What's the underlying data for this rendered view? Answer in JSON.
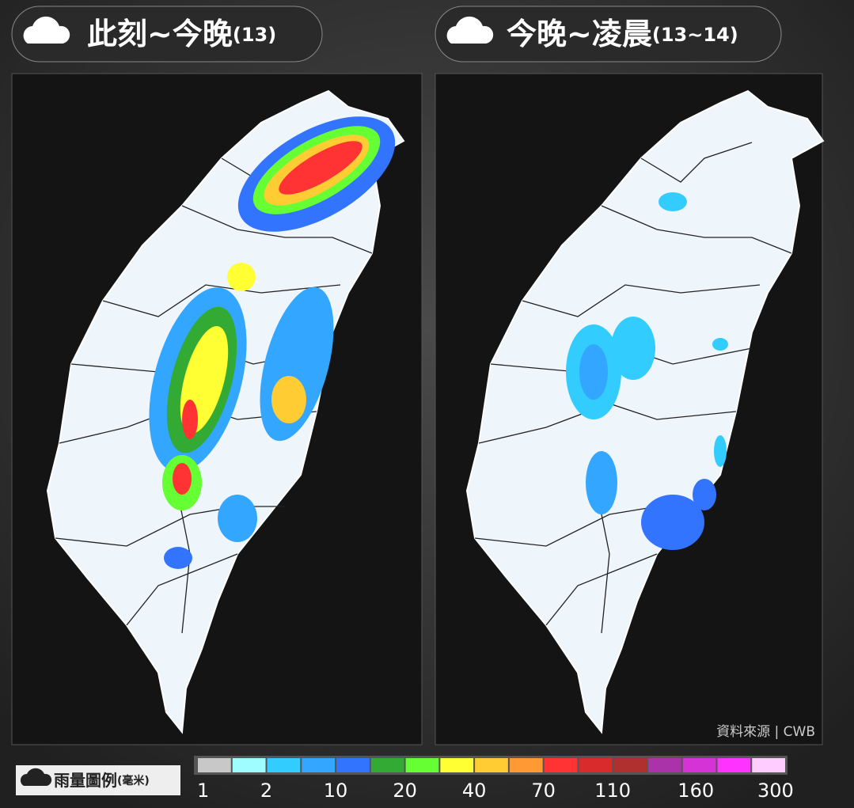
{
  "panels": [
    {
      "title": "此刻~今晚",
      "date": "(13)"
    },
    {
      "title": "今晚~凌晨",
      "date": "(13~14)"
    }
  ],
  "source": "資料來源 | CWB",
  "legend": {
    "title": "雨量圖例",
    "unit": "(毫米)",
    "labels": [
      1,
      2,
      10,
      20,
      40,
      70,
      110,
      160,
      300
    ],
    "colors": [
      "#c8c8c8",
      "#9ffcff",
      "#33ccff",
      "#33a6ff",
      "#3374ff",
      "#33aa33",
      "#66ff33",
      "#ffff33",
      "#ffcc33",
      "#ff9933",
      "#ff3333",
      "#d92b2b",
      "#b03030",
      "#aa33aa",
      "#d633d6",
      "#ff33ff",
      "#ffccff"
    ]
  }
}
